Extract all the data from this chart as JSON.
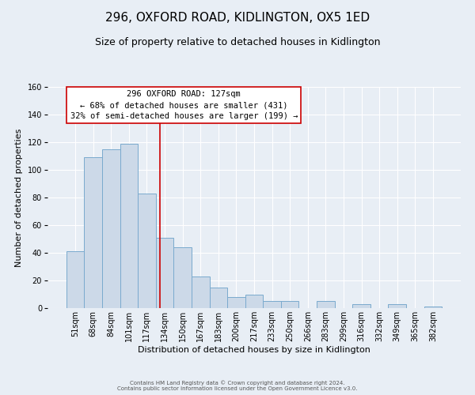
{
  "title": "296, OXFORD ROAD, KIDLINGTON, OX5 1ED",
  "subtitle": "Size of property relative to detached houses in Kidlington",
  "xlabel": "Distribution of detached houses by size in Kidlington",
  "ylabel": "Number of detached properties",
  "footer_lines": [
    "Contains HM Land Registry data © Crown copyright and database right 2024.",
    "Contains public sector information licensed under the Open Government Licence v3.0."
  ],
  "bar_labels": [
    "51sqm",
    "68sqm",
    "84sqm",
    "101sqm",
    "117sqm",
    "134sqm",
    "150sqm",
    "167sqm",
    "183sqm",
    "200sqm",
    "217sqm",
    "233sqm",
    "250sqm",
    "266sqm",
    "283sqm",
    "299sqm",
    "316sqm",
    "332sqm",
    "349sqm",
    "365sqm",
    "382sqm"
  ],
  "bar_values": [
    41,
    109,
    115,
    119,
    83,
    51,
    44,
    23,
    15,
    8,
    10,
    5,
    5,
    0,
    5,
    0,
    3,
    0,
    3,
    0,
    1
  ],
  "bar_color": "#ccd9e8",
  "bar_edge_color": "#7aaace",
  "ylim": [
    0,
    160
  ],
  "yticks": [
    0,
    20,
    40,
    60,
    80,
    100,
    120,
    140,
    160
  ],
  "vline_x": 4.72,
  "vline_color": "#cc0000",
  "annotation_text": "296 OXFORD ROAD: 127sqm\n← 68% of detached houses are smaller (431)\n32% of semi-detached houses are larger (199) →",
  "annotation_box_color": "#ffffff",
  "annotation_box_edge": "#cc0000",
  "background_color": "#e8eef5",
  "axes_background": "#e8eef5",
  "title_fontsize": 11,
  "subtitle_fontsize": 9,
  "annotation_fontsize": 7.5,
  "ylabel_fontsize": 8,
  "xlabel_fontsize": 8,
  "tick_fontsize": 7,
  "footer_fontsize": 5
}
